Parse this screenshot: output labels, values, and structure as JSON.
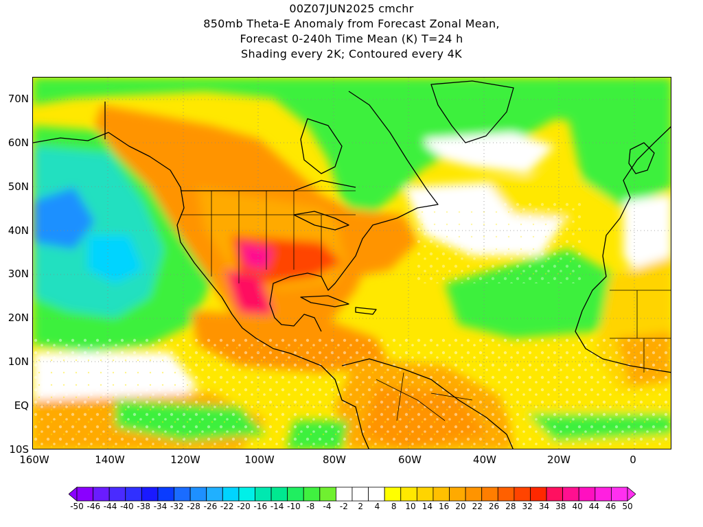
{
  "title": {
    "line1": "00Z07JUN2025 cmchr",
    "line2": "850mb Theta-E Anomaly from Forecast Zonal Mean,",
    "line3": "Forecast 0-240h Time Mean (K) T=24 h",
    "line4": "Shading every 2K; Contoured every 4K"
  },
  "axes": {
    "lat_labels": [
      "70N",
      "60N",
      "50N",
      "40N",
      "30N",
      "20N",
      "10N",
      "EQ",
      "10S"
    ],
    "lon_labels": [
      "160W",
      "140W",
      "120W",
      "100W",
      "80W",
      "60W",
      "40W",
      "20W",
      "0"
    ]
  },
  "colorbar": {
    "labels": [
      "-50",
      "-46",
      "-44",
      "-40",
      "-38",
      "-34",
      "-32",
      "-28",
      "-26",
      "-22",
      "-20",
      "-16",
      "-14",
      "-10",
      "-8",
      "-4",
      "-2",
      "2",
      "4",
      "8",
      "10",
      "14",
      "16",
      "20",
      "22",
      "26",
      "28",
      "32",
      "34",
      "38",
      "40",
      "44",
      "46",
      "50"
    ],
    "colors": [
      "#8a00ff",
      "#6a1cff",
      "#4a2bff",
      "#3030ff",
      "#1a1aff",
      "#0a3cff",
      "#1a6cff",
      "#1e90ff",
      "#20b0ff",
      "#00d4ff",
      "#00f0e8",
      "#00e8b0",
      "#00e890",
      "#20ee60",
      "#40f040",
      "#70f030",
      "#ffffff",
      "#ffffff",
      "#ffffff",
      "#ffff00",
      "#ffe800",
      "#ffd400",
      "#ffc000",
      "#ffaa00",
      "#ff9400",
      "#ff7e00",
      "#ff6000",
      "#ff4400",
      "#ff2800",
      "#ff1060",
      "#ff1090",
      "#ff10c0",
      "#ff20e0",
      "#ff30f0"
    ]
  },
  "colors": {
    "ocean_green": "#3cf03c",
    "ocean_cyan": "#20e0c0",
    "warm_yellow": "#ffe800",
    "warm_orange": "#ff9400",
    "hot_red": "#ff3000",
    "coastline": "#000000"
  }
}
